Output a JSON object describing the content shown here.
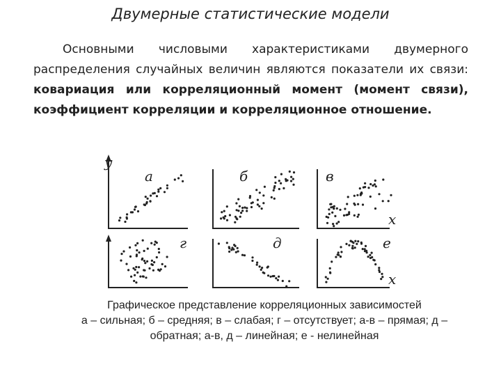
{
  "title": "Двумерные статистические модели",
  "paragraph": {
    "normal_text": "Основными числовыми характеристиками двумерного распределения случайных величин являются показатели их связи: ",
    "bold_text": "ковариация или корреляционный момент (момент связи), коэффициент корреляции и корреляционное отношение."
  },
  "figure": {
    "y_axis_label": "y",
    "x_axis_label": "x",
    "panels": [
      {
        "label": "а"
      },
      {
        "label": "б"
      },
      {
        "label": "в"
      },
      {
        "label": "г"
      },
      {
        "label": "д"
      },
      {
        "label": "е"
      }
    ]
  },
  "caption": {
    "line1": "Графическое представление корреляционных зависимостей",
    "line2": "а – сильная; б – средняя; в – слабая; г – отсутствует; а-в – прямая; д –",
    "line3": "обратная; а-в, д – линейная; е - нелинейная"
  }
}
